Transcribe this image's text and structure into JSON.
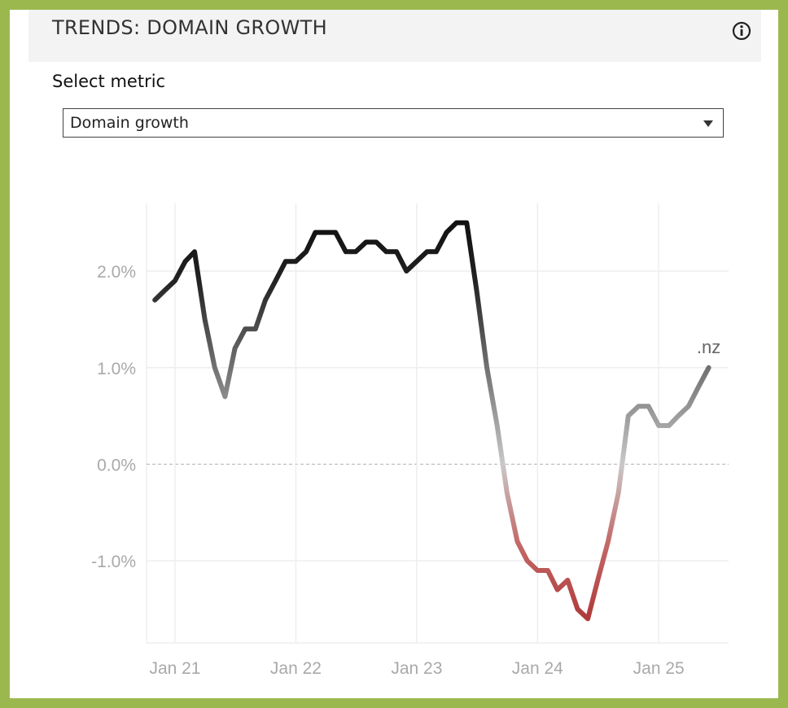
{
  "header": {
    "title": "TRENDS: DOMAIN GROWTH",
    "info_icon": "info-circle-icon"
  },
  "metric_select": {
    "label": "Select metric",
    "value": "Domain growth"
  },
  "chart_data": {
    "type": "line",
    "x": [
      "2020-11-01",
      "2020-12-01",
      "2021-01-01",
      "2021-02-01",
      "2021-03-01",
      "2021-04-01",
      "2021-05-01",
      "2021-06-01",
      "2021-07-01",
      "2021-08-01",
      "2021-09-01",
      "2021-10-01",
      "2021-11-01",
      "2021-12-01",
      "2022-01-01",
      "2022-02-01",
      "2022-03-01",
      "2022-04-01",
      "2022-05-01",
      "2022-06-01",
      "2022-07-01",
      "2022-08-01",
      "2022-09-01",
      "2022-10-01",
      "2022-11-01",
      "2022-12-01",
      "2023-01-01",
      "2023-02-01",
      "2023-03-01",
      "2023-04-01",
      "2023-05-01",
      "2023-06-01",
      "2023-07-01",
      "2023-08-01",
      "2023-09-01",
      "2023-10-01",
      "2023-11-01",
      "2023-12-01",
      "2024-01-01",
      "2024-02-01",
      "2024-03-01",
      "2024-04-01",
      "2024-05-01",
      "2024-06-01",
      "2024-07-01",
      "2024-08-01",
      "2024-09-01",
      "2024-10-01",
      "2024-11-01",
      "2024-12-01",
      "2025-01-01",
      "2025-02-01",
      "2025-03-01",
      "2025-04-01",
      "2025-05-01",
      "2025-06-01"
    ],
    "series": [
      {
        "name": ".nz",
        "values": [
          1.7,
          1.8,
          1.9,
          2.1,
          2.2,
          1.5,
          1.0,
          0.7,
          1.2,
          1.4,
          1.4,
          1.7,
          1.9,
          2.1,
          2.1,
          2.2,
          2.4,
          2.4,
          2.4,
          2.2,
          2.2,
          2.3,
          2.3,
          2.2,
          2.2,
          2.0,
          2.1,
          2.2,
          2.2,
          2.4,
          2.5,
          2.5,
          1.8,
          1.0,
          0.4,
          -0.3,
          -0.8,
          -1.0,
          -1.1,
          -1.1,
          -1.3,
          -1.2,
          -1.5,
          -1.6,
          -1.2,
          -0.8,
          -0.3,
          0.5,
          0.6,
          0.6,
          0.4,
          0.4,
          0.5,
          0.6,
          0.8,
          1.0
        ]
      }
    ],
    "x_ticks": [
      "Jan 21",
      "Jan 22",
      "Jan 23",
      "Jan 24",
      "Jan 25"
    ],
    "y_ticks": [
      "2.0%",
      "1.0%",
      "0.0%",
      "-1.0%"
    ],
    "y_tick_values": [
      2.0,
      1.0,
      0.0,
      -1.0
    ],
    "ylim": [
      -1.85,
      2.7
    ],
    "xlim": [
      "2020-10-07",
      "2025-07-31"
    ],
    "grid": true,
    "zero_line": "dashed",
    "colors": {
      "positive_high": "#111111",
      "positive_low": "#b0b0b0",
      "negative": "#b03a3a",
      "grid": "#eeeeee",
      "axis_text": "#a9a9a9"
    }
  }
}
